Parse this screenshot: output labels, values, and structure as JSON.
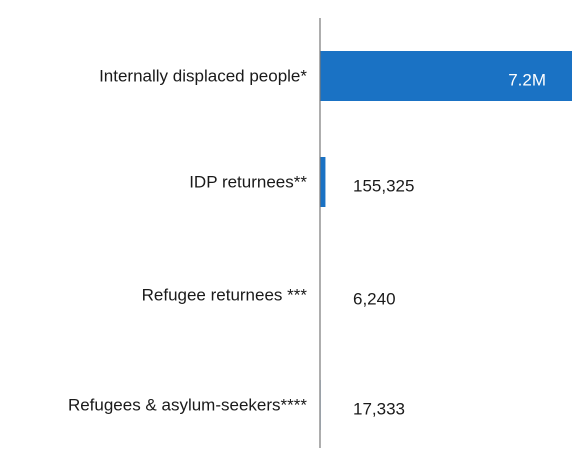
{
  "chart_data": {
    "type": "bar",
    "orientation": "horizontal",
    "categories": [
      "Internally displaced people*",
      "IDP returnees**",
      "Refugee returnees ***",
      "Refugees & asylum-seekers****"
    ],
    "values": [
      7200000,
      155325,
      6240,
      17333
    ],
    "value_labels": [
      "7.2M",
      "155,325",
      "6,240",
      "17,333"
    ],
    "title": "",
    "xlabel": "",
    "ylabel": "",
    "xlim": [
      0,
      7200000
    ],
    "grid": false,
    "legend": "none",
    "colors": {
      "bar": "#1a72c4",
      "axis": "#777777",
      "label_inside": "#ffffff",
      "label_outside": "#1a1a1a"
    }
  }
}
